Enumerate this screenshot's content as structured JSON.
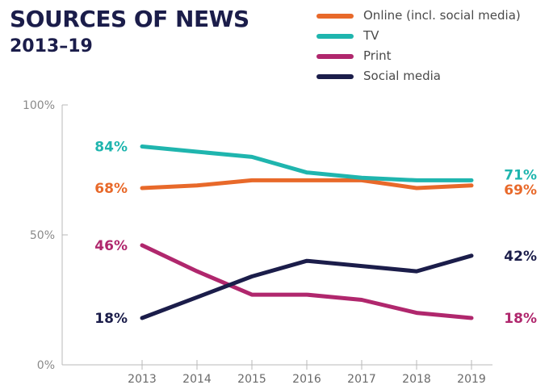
{
  "title": "SOURCES OF NEWS",
  "subtitle": "2013–19",
  "chart_data": {
    "type": "line",
    "title": "SOURCES OF NEWS",
    "subtitle": "2013–19",
    "x": [
      2013,
      2014,
      2015,
      2016,
      2017,
      2018,
      2019
    ],
    "x_tick_labels": [
      "2013",
      "2014",
      "2015",
      "2016",
      "2017",
      "2018",
      "2019"
    ],
    "y_tick_labels": [
      "0%",
      "50%",
      "100%"
    ],
    "ylim": [
      0,
      100
    ],
    "grid": false,
    "legend_position": "top-right",
    "series": [
      {
        "name": "Online (incl. social media)",
        "color": "#e8692a",
        "values": [
          68,
          69,
          71,
          71,
          71,
          68,
          69
        ],
        "start_label": "68%",
        "end_label": "69%"
      },
      {
        "name": "TV",
        "color": "#1fb5ae",
        "values": [
          84,
          82,
          80,
          74,
          72,
          71,
          71
        ],
        "start_label": "84%",
        "end_label": "71%"
      },
      {
        "name": "Print",
        "color": "#b0276d",
        "values": [
          46,
          36,
          27,
          27,
          25,
          20,
          18
        ],
        "start_label": "46%",
        "end_label": "18%"
      },
      {
        "name": "Social media",
        "color": "#1b1d4a",
        "values": [
          18,
          26,
          34,
          40,
          38,
          36,
          42
        ],
        "start_label": "18%",
        "end_label": "42%"
      }
    ]
  }
}
